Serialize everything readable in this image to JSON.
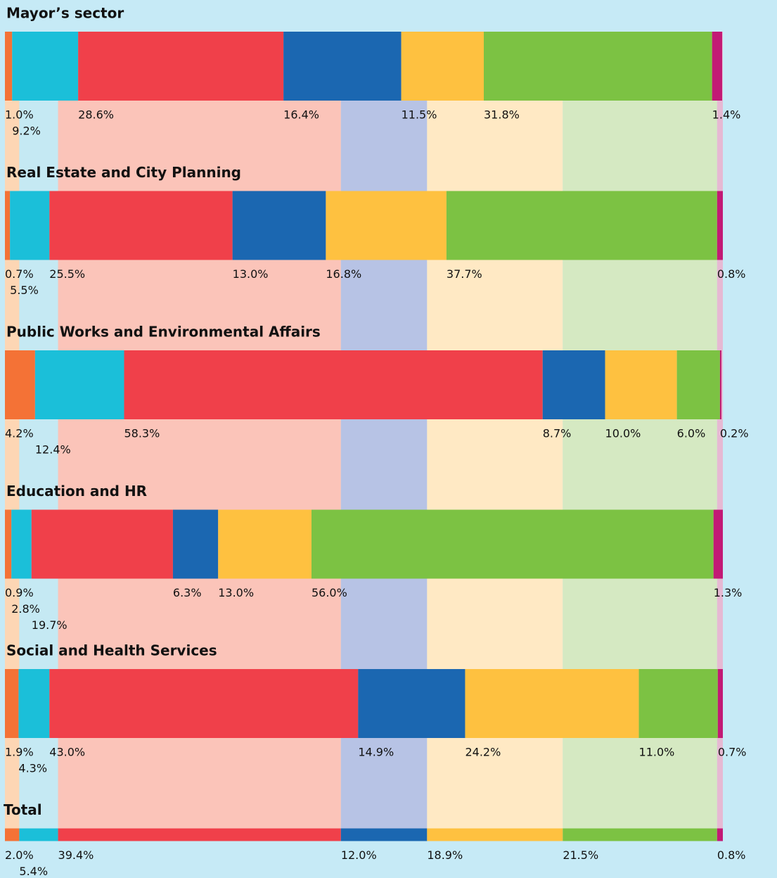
{
  "chart_data": {
    "type": "stacked-bar",
    "orientation": "horizontal",
    "categories": [
      "Mayor’s sector",
      "Real Estate and City Planning",
      "Public Works and Environmental Affairs",
      "Education and HR",
      "Social and Health Services",
      "Total"
    ],
    "xlim": [
      0,
      100
    ],
    "background": "#c6eaf6",
    "series": [
      {
        "color": "#f47236",
        "light_color": "#fdd6b4",
        "values": [
          1.0,
          0.7,
          4.2,
          0.9,
          1.9,
          2.0
        ],
        "value_labels": [
          "1.0%",
          "0.7%",
          "4.2%",
          "0.9%",
          "1.9%",
          "2.0%"
        ]
      },
      {
        "color": "#1bbfd9",
        "light_color": "#c5e9f3",
        "values": [
          9.2,
          5.5,
          12.4,
          2.8,
          4.3,
          5.4
        ],
        "value_labels": [
          "9.2%",
          "5.5%",
          "12.4%",
          "2.8%",
          "4.3%",
          "5.4%"
        ]
      },
      {
        "color": "#f0404a",
        "light_color": "#fbc4b9",
        "values": [
          28.6,
          25.5,
          58.3,
          19.7,
          43.0,
          39.4
        ],
        "value_labels": [
          "28.6%",
          "25.5%",
          "58.3%",
          "19.7%",
          "43.0%",
          "39.4%"
        ]
      },
      {
        "color": "#1b67b1",
        "light_color": "#b7c3e5",
        "values": [
          16.4,
          13.0,
          8.7,
          6.3,
          14.9,
          12.0
        ],
        "value_labels": [
          "16.4%",
          "13.0%",
          "8.7%",
          "6.3%",
          "14.9%",
          "12.0%"
        ]
      },
      {
        "color": "#fec140",
        "light_color": "#ffe9c4",
        "values": [
          11.5,
          16.8,
          10.0,
          13.0,
          24.2,
          18.9
        ],
        "value_labels": [
          "11.5%",
          "16.8%",
          "10.0%",
          "13.0%",
          "24.2%",
          "18.9%"
        ]
      },
      {
        "color": "#7cc243",
        "light_color": "#d5e9c2",
        "values": [
          31.8,
          37.7,
          6.0,
          56.0,
          11.0,
          21.5
        ],
        "value_labels": [
          "31.8%",
          "37.7%",
          "6.0%",
          "56.0%",
          "11.0%",
          "21.5%"
        ]
      },
      {
        "color": "#c21a75",
        "light_color": "#e6b9d3",
        "values": [
          1.4,
          0.8,
          0.2,
          1.3,
          0.7,
          0.8
        ],
        "value_labels": [
          "1.4%",
          "0.8%",
          "0.2%",
          "1.3%",
          "0.7%",
          "0.8%"
        ]
      }
    ]
  }
}
